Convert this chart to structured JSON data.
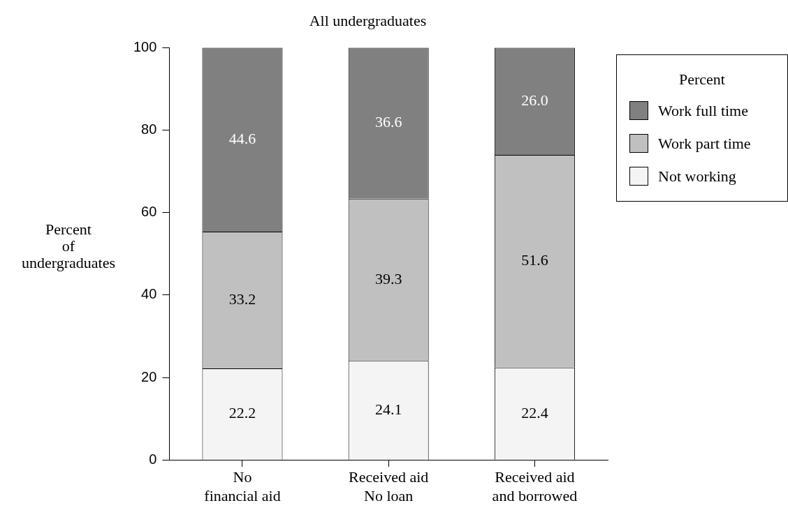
{
  "chart_data": {
    "type": "bar",
    "title": "All undergraduates",
    "ylabel": "Percent\nof\nundergraduates",
    "legend_title": "Percent",
    "categories": [
      "No\nfinancial aid",
      "Received aid\nNo loan",
      "Received aid\nand borrowed"
    ],
    "series": [
      {
        "name": "Not working",
        "color": "#f4f4f4",
        "values": [
          22.2,
          24.1,
          22.4
        ],
        "value_labels": [
          "22.2",
          "24.1",
          "22.4"
        ]
      },
      {
        "name": "Work part time",
        "color": "#c0c0c0",
        "values": [
          33.2,
          39.3,
          51.6
        ],
        "value_labels": [
          "33.2",
          "39.3",
          "51.6"
        ]
      },
      {
        "name": "Work full time",
        "color": "#808080",
        "values": [
          44.6,
          36.6,
          26.0
        ],
        "value_labels": [
          "44.6",
          "36.6",
          "26.0"
        ]
      }
    ],
    "stacked": true,
    "ylim": [
      0,
      100
    ],
    "yticks": [
      0,
      20,
      40,
      60,
      80,
      100
    ],
    "grid": false,
    "legend": "top right"
  }
}
